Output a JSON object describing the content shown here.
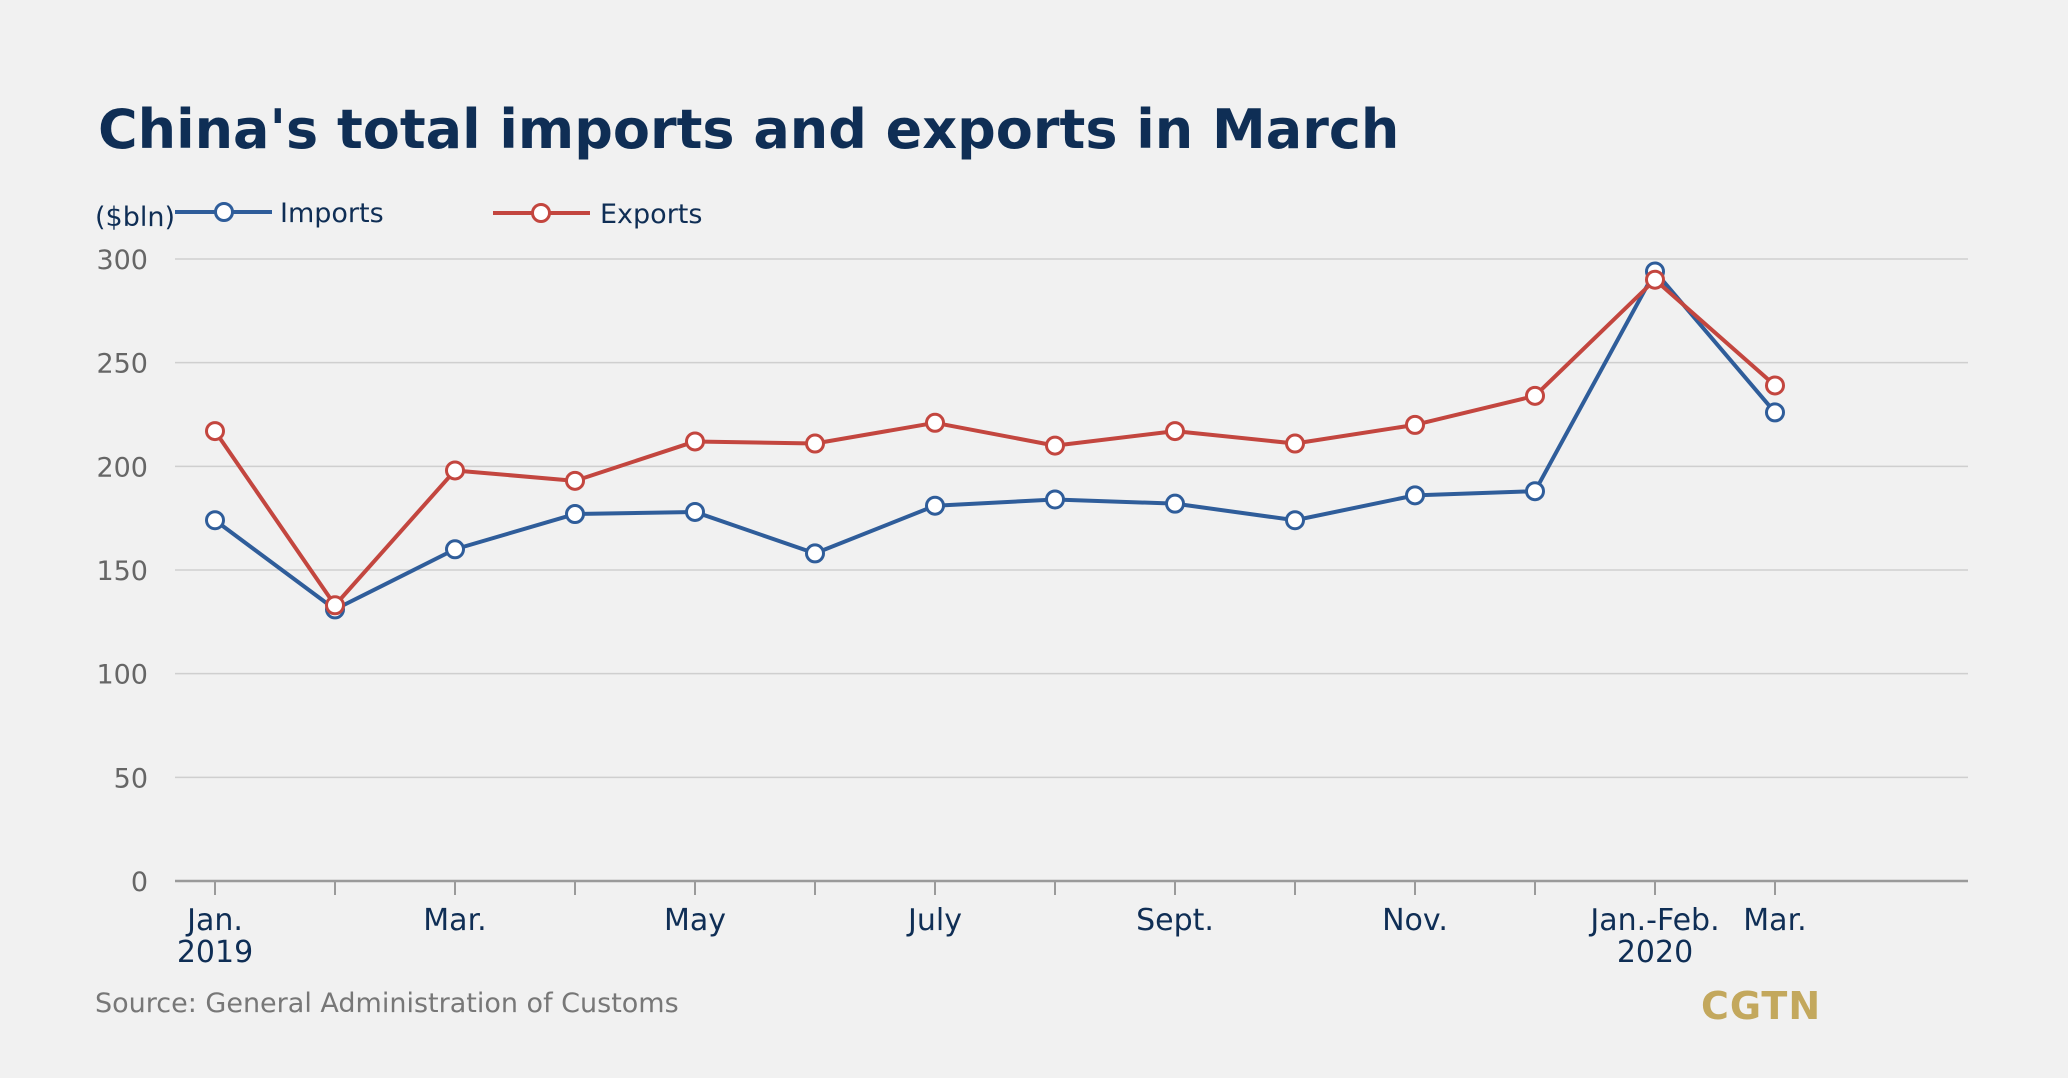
{
  "chart_data": {
    "type": "line",
    "title": "China's total imports and exports in March",
    "ylabel": "($bln)",
    "source": "Source: General Administration of Customs",
    "brand": "CGTN",
    "ylim": [
      0,
      300
    ],
    "yticks": [
      "0",
      "50",
      "100",
      "150",
      "200",
      "250",
      "300"
    ],
    "x": [
      "2019-01",
      "2019-02",
      "2019-03",
      "2019-04",
      "2019-05",
      "2019-06",
      "2019-07",
      "2019-08",
      "2019-09",
      "2019-10",
      "2019-11",
      "2019-12",
      "2020-01/02",
      "2020-03"
    ],
    "xtick_labels": [
      {
        "line1": "Jan.",
        "line2": "2019"
      },
      {
        "line1": "",
        "line2": ""
      },
      {
        "line1": "Mar.",
        "line2": ""
      },
      {
        "line1": "",
        "line2": ""
      },
      {
        "line1": "May",
        "line2": ""
      },
      {
        "line1": "",
        "line2": ""
      },
      {
        "line1": "July",
        "line2": ""
      },
      {
        "line1": "",
        "line2": ""
      },
      {
        "line1": "Sept.",
        "line2": ""
      },
      {
        "line1": "",
        "line2": ""
      },
      {
        "line1": "Nov.",
        "line2": ""
      },
      {
        "line1": "",
        "line2": ""
      },
      {
        "line1": "Jan.-Feb.",
        "line2": "2020"
      },
      {
        "line1": "Mar.",
        "line2": ""
      }
    ],
    "grid": true,
    "legend_position": "top-left",
    "series": [
      {
        "name": "Imports",
        "color": "#2f5d9a",
        "values": [
          174,
          131,
          160,
          177,
          178,
          158,
          181,
          184,
          182,
          174,
          186,
          188,
          294,
          226
        ]
      },
      {
        "name": "Exports",
        "color": "#c3463f",
        "values": [
          217,
          133,
          198,
          193,
          212,
          211,
          221,
          210,
          217,
          211,
          220,
          234,
          290,
          239
        ]
      }
    ]
  }
}
